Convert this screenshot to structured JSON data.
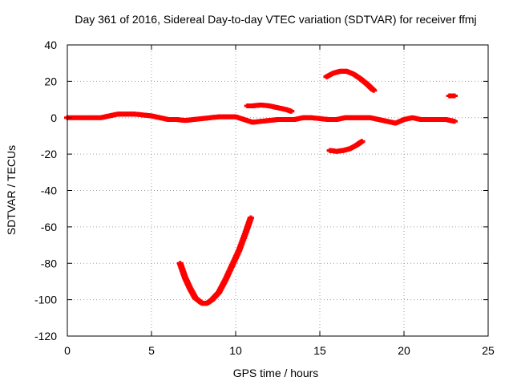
{
  "chart_data": {
    "type": "scatter",
    "title": "Day 361 of 2016, Sidereal Day-to-day VTEC variation (SDTVAR) for receiver ffmj",
    "xlabel": "GPS time / hours",
    "ylabel": "SDTVAR / TECUs",
    "xlim": [
      0,
      25
    ],
    "ylim": [
      -120,
      40
    ],
    "x_ticks": [
      0,
      5,
      10,
      15,
      20,
      25
    ],
    "y_ticks": [
      -120,
      -100,
      -80,
      -60,
      -40,
      -20,
      0,
      20,
      40
    ],
    "grid": true,
    "marker_color": "#ff0000",
    "series": [
      {
        "segments": [
          {
            "x": [
              0,
              1,
              2,
              2.5,
              3,
              3.5,
              4,
              4.5,
              5,
              5.5,
              6,
              6.5,
              7,
              7.5,
              8,
              8.5,
              9,
              9.5,
              10,
              10.5,
              11,
              11.5,
              12,
              12.5,
              13,
              13.5,
              14,
              14.5,
              15,
              15.5,
              16,
              16.5,
              17,
              17.5,
              18,
              18.5,
              19,
              19.5,
              20,
              20.5,
              21,
              21.5,
              22,
              22.5,
              23
            ],
            "y": [
              0,
              0,
              0,
              1,
              2,
              2,
              2,
              1.5,
              1,
              0,
              -1,
              -1,
              -1.5,
              -1,
              -0.5,
              0,
              0.5,
              0.5,
              0.5,
              -1,
              -2.5,
              -2,
              -1.5,
              -1,
              -1,
              -1,
              0,
              0,
              -0.5,
              -1,
              -1,
              0,
              0,
              0,
              0,
              -1,
              -2,
              -3,
              -1,
              0,
              -1,
              -1,
              -1,
              -1,
              -2
            ]
          },
          {
            "x": [
              6.7,
              7,
              7.3,
              7.6,
              8,
              8.3,
              8.6,
              9,
              9.4,
              9.8,
              10.2,
              10.6,
              10.9
            ],
            "y": [
              -80,
              -88,
              -94,
              -99,
              -102,
              -102,
              -100,
              -96,
              -89,
              -81,
              -73,
              -63,
              -55
            ]
          },
          {
            "x": [
              10.7,
              11,
              11.5,
              12,
              12.5,
              13,
              13.3
            ],
            "y": [
              6.5,
              6.5,
              7,
              6.5,
              5.5,
              4.5,
              3.5
            ]
          },
          {
            "x": [
              15.4,
              15.8,
              16.2,
              16.6,
              17,
              17.4,
              17.8,
              18.2
            ],
            "y": [
              22.5,
              24.5,
              25.5,
              25.5,
              24,
              21.5,
              18.5,
              15
            ]
          },
          {
            "x": [
              15.6,
              16,
              16.4,
              16.8,
              17.2,
              17.5
            ],
            "y": [
              -18,
              -18.5,
              -18,
              -17,
              -15,
              -13
            ]
          },
          {
            "x": [
              22.7,
              22.8,
              22.9,
              23
            ],
            "y": [
              12,
              12,
              12,
              12
            ]
          }
        ]
      }
    ]
  }
}
